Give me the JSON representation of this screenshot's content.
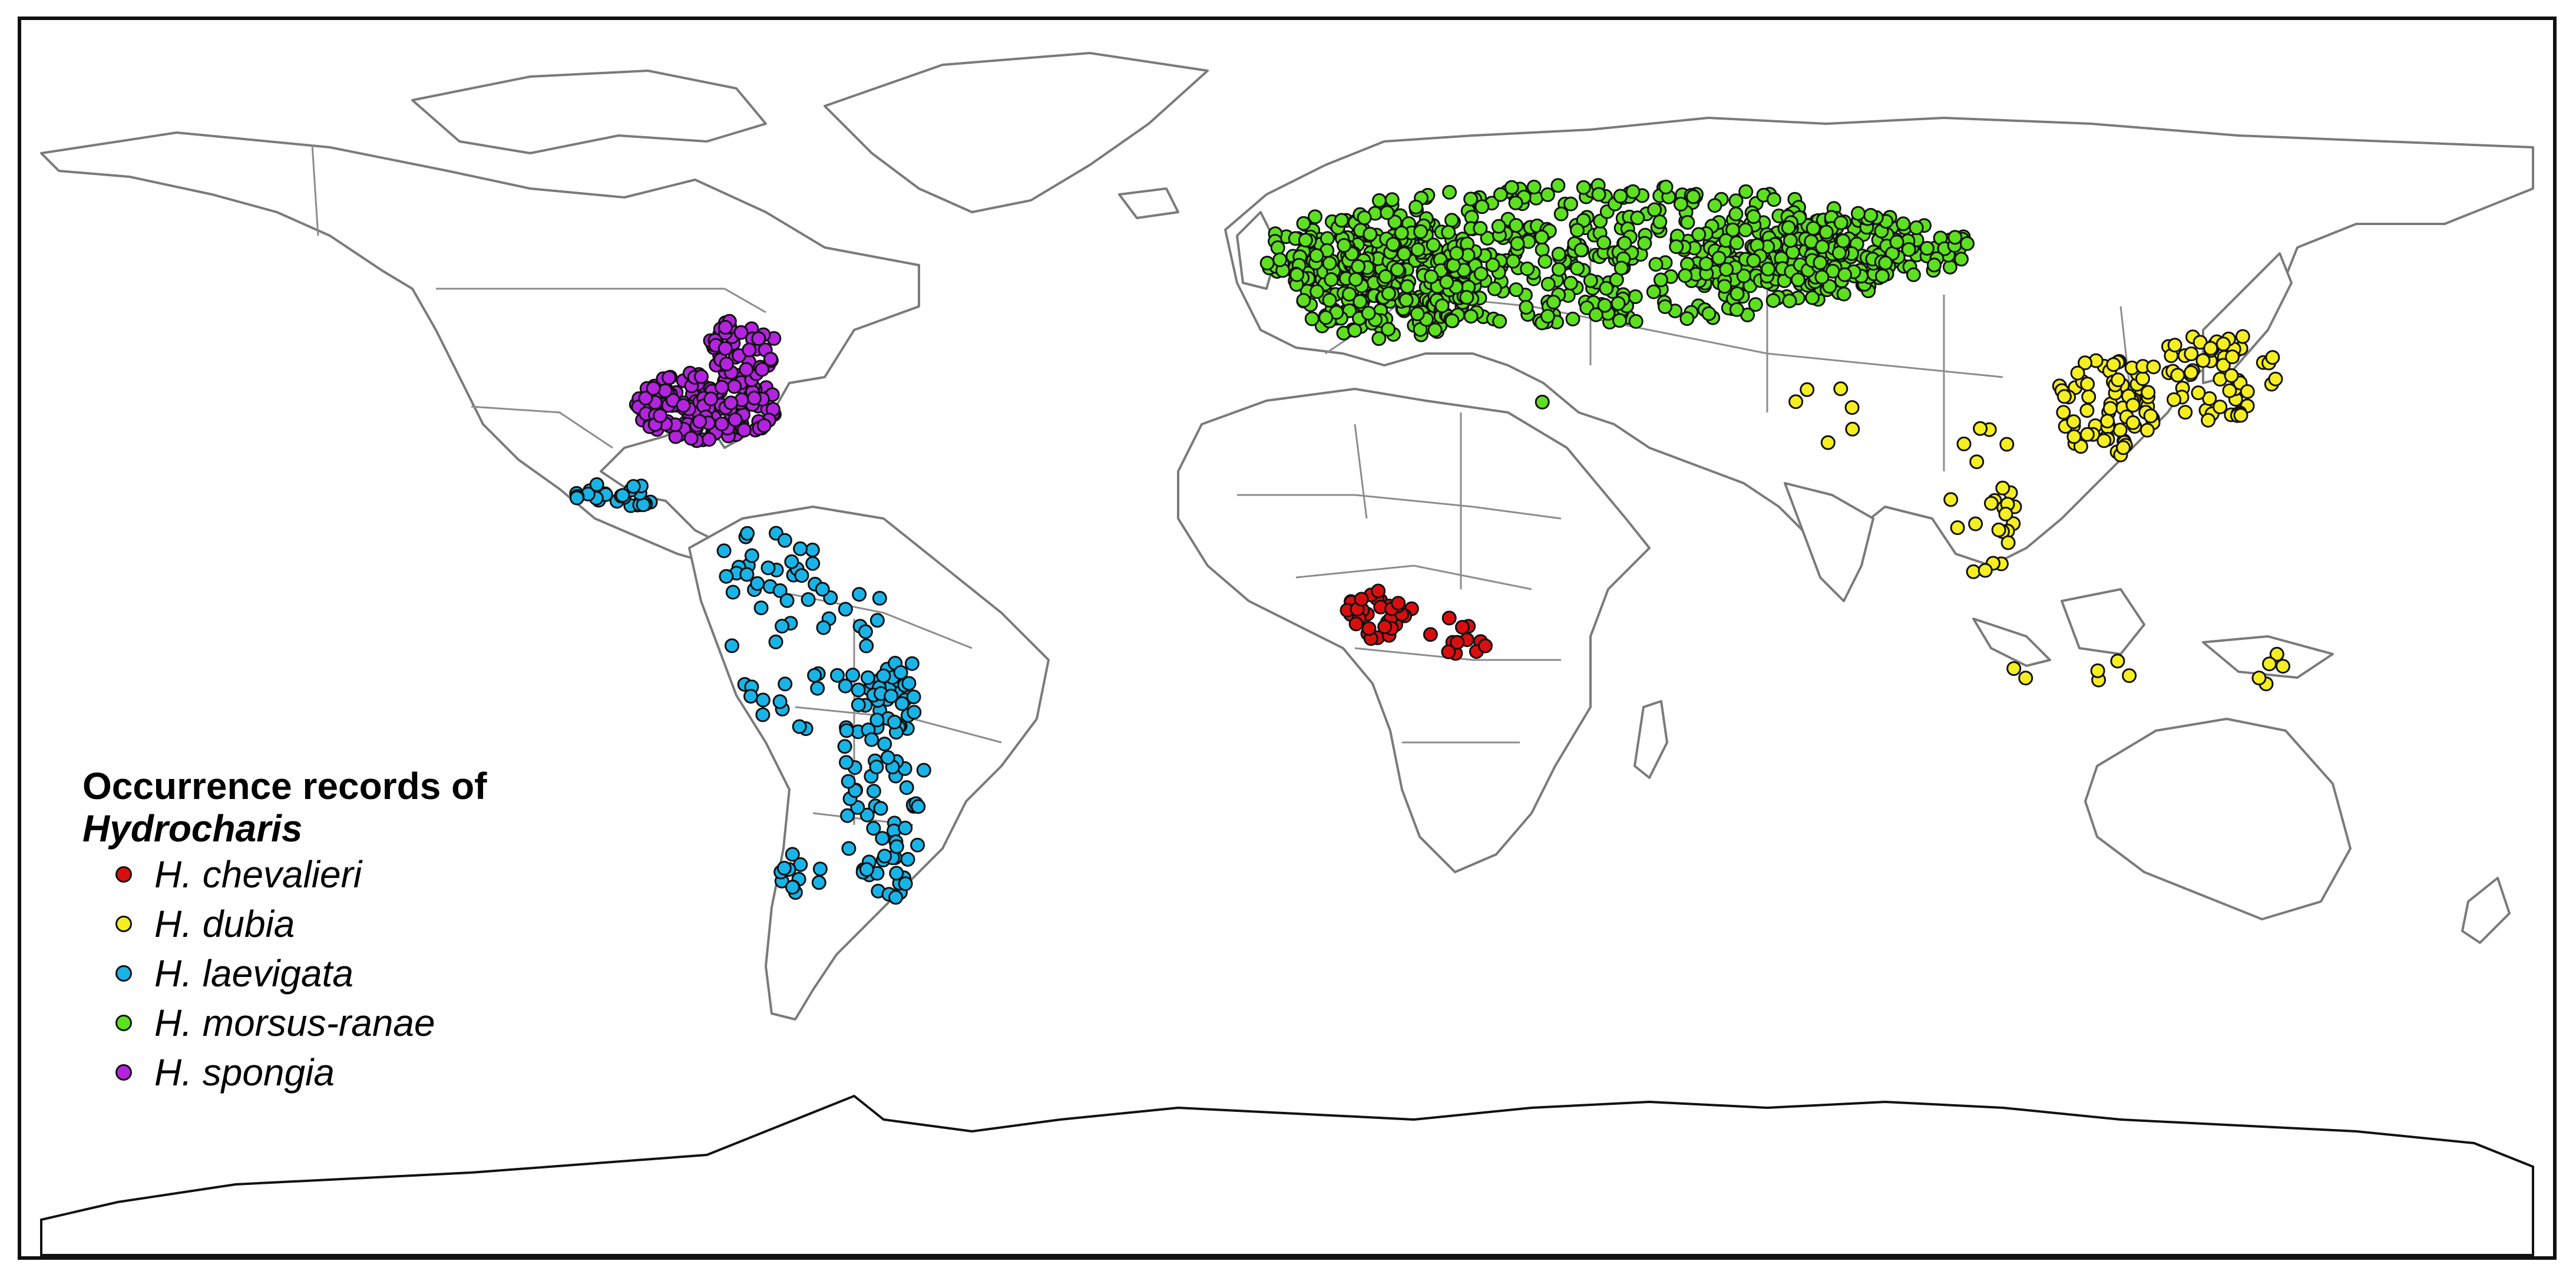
{
  "legend": {
    "title_line1": "Occurrence records of",
    "title_line2": "Hydrocharis",
    "items": [
      {
        "label": "H. chevalieri",
        "color": "#d90f0f"
      },
      {
        "label": "H. dubia",
        "color": "#f5ef21"
      },
      {
        "label": "H. laevigata",
        "color": "#18b4e8"
      },
      {
        "label": "H. morsus-ranae",
        "color": "#5de01f"
      },
      {
        "label": "H. spongia",
        "color": "#b423e0"
      }
    ]
  },
  "map": {
    "projection": "equirectangular-world",
    "extent": {
      "lon": [
        -180,
        180
      ],
      "lat": [
        -90,
        90
      ]
    }
  }
}
